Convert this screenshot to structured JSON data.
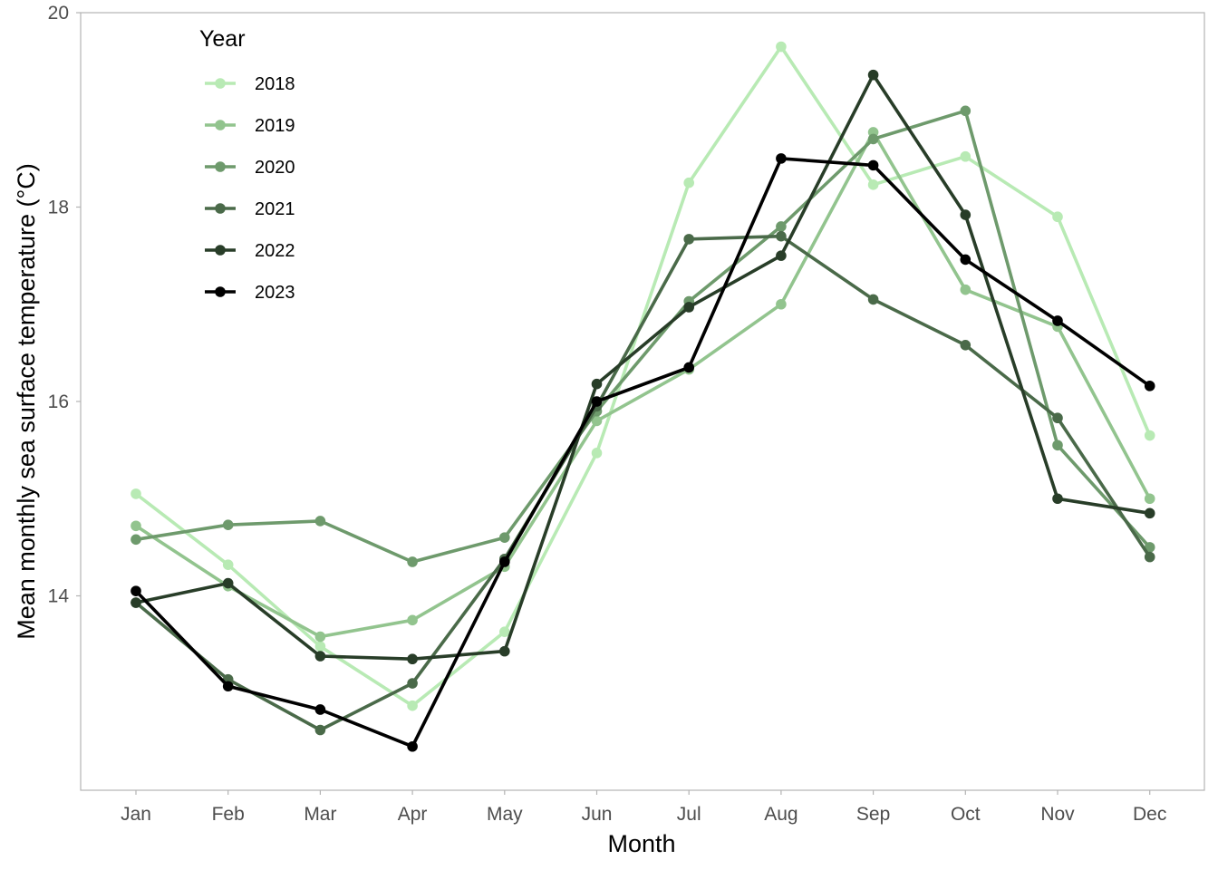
{
  "chart_data": {
    "type": "line",
    "title": "",
    "xlabel": "Month",
    "ylabel": "Mean monthly sea surface temperature (°C)",
    "categories": [
      "Jan",
      "Feb",
      "Mar",
      "Apr",
      "May",
      "Jun",
      "Jul",
      "Aug",
      "Sep",
      "Oct",
      "Nov",
      "Dec"
    ],
    "ylim": [
      12.0,
      20.0
    ],
    "yticks": [
      "14",
      "16",
      "18",
      "20"
    ],
    "grid": false,
    "legend": {
      "title": "Year",
      "placement": "top-left"
    },
    "series": [
      {
        "name": "2018",
        "color": "#b8eab4",
        "values": [
          15.05,
          14.32,
          13.48,
          12.87,
          13.63,
          15.47,
          18.25,
          19.65,
          18.23,
          18.52,
          17.9,
          15.65
        ]
      },
      {
        "name": "2019",
        "color": "#92c48e",
        "values": [
          14.72,
          14.1,
          13.58,
          13.75,
          14.3,
          15.8,
          16.33,
          17.0,
          18.77,
          17.15,
          16.77,
          15.0
        ]
      },
      {
        "name": "2020",
        "color": "#6e9a6c",
        "values": [
          14.58,
          14.73,
          14.77,
          14.35,
          14.6,
          15.9,
          17.03,
          17.8,
          18.7,
          18.99,
          15.55,
          14.5
        ]
      },
      {
        "name": "2021",
        "color": "#4a6a49",
        "values": [
          13.93,
          13.14,
          12.62,
          13.1,
          14.38,
          15.95,
          17.67,
          17.7,
          17.05,
          16.58,
          15.83,
          14.4
        ]
      },
      {
        "name": "2022",
        "color": "#283d28",
        "values": [
          13.93,
          14.13,
          13.38,
          13.35,
          13.43,
          16.18,
          16.97,
          17.5,
          19.36,
          17.92,
          15.0,
          14.85
        ]
      },
      {
        "name": "2023",
        "color": "#000000",
        "values": [
          14.05,
          13.07,
          12.83,
          12.45,
          14.35,
          16.0,
          16.35,
          18.5,
          18.43,
          17.46,
          16.83,
          16.16
        ]
      }
    ]
  }
}
